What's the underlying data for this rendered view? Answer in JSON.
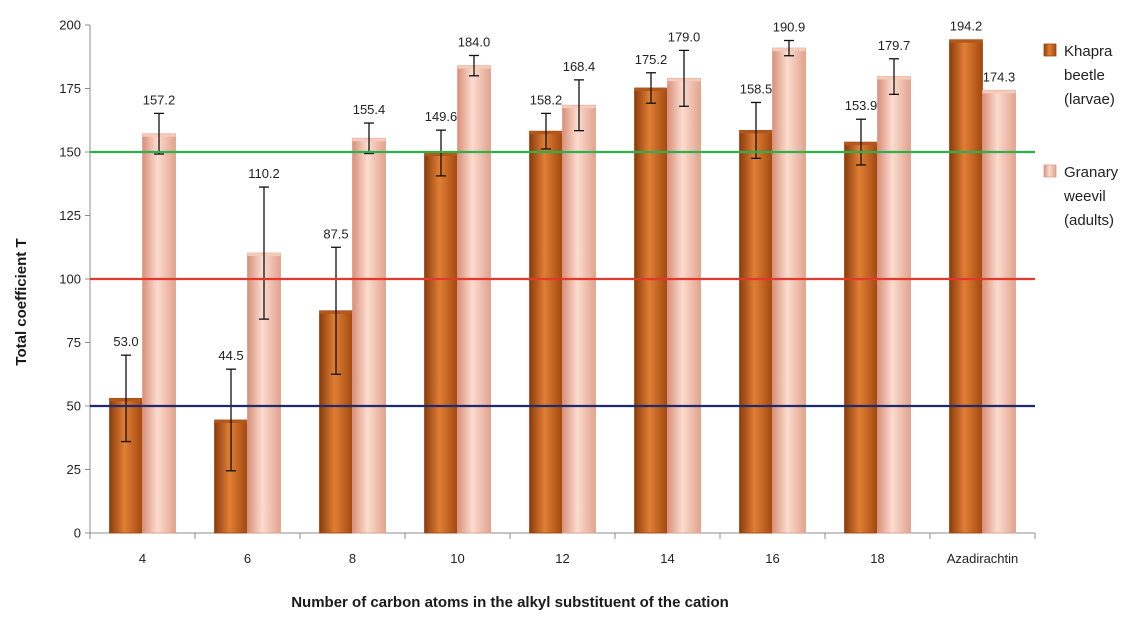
{
  "chart_data": {
    "type": "bar",
    "title": "",
    "xlabel": "Number of carbon atoms in the alkyl substituent of the cation",
    "ylabel": "Total coefficient T",
    "ylim": [
      0,
      200
    ],
    "yticks": [
      "0",
      "25",
      "50",
      "75",
      "100",
      "125",
      "150",
      "175",
      "200"
    ],
    "categories": [
      "4",
      "6",
      "8",
      "10",
      "12",
      "14",
      "16",
      "18",
      "Azadirachtin"
    ],
    "grid": false,
    "legend_position": "right",
    "series": [
      {
        "name": "Khapra beetle (larvae)",
        "legend_lines": [
          "Khapra",
          "beetle",
          "(larvae)"
        ],
        "color": "#c8621a",
        "values": [
          53.0,
          44.5,
          87.5,
          149.6,
          158.2,
          175.2,
          158.5,
          153.9,
          194.2
        ],
        "labels": [
          "53.0",
          "44.5",
          "87.5",
          "149.6",
          "158.2",
          "175.2",
          "158.5",
          "153.9",
          "194.2"
        ],
        "errors": [
          17,
          20,
          25,
          9,
          7,
          6,
          11,
          9,
          null
        ]
      },
      {
        "name": "Granary weevil (adults)",
        "legend_lines": [
          "Granary",
          "weevil",
          "(adults)"
        ],
        "color": "#f0b9a2",
        "values": [
          157.2,
          110.2,
          155.4,
          184.0,
          168.4,
          179.0,
          190.9,
          179.7,
          174.3
        ],
        "labels": [
          "157.2",
          "110.2",
          "155.4",
          "184.0",
          "168.4",
          "179.0",
          "190.9",
          "179.7",
          "174.3"
        ],
        "errors": [
          8,
          26,
          6,
          4,
          10,
          11,
          3,
          7,
          null
        ]
      }
    ],
    "reference_lines": [
      {
        "value": 150,
        "color": "#2fb04a"
      },
      {
        "value": 100,
        "color": "#e03a2e"
      },
      {
        "value": 50,
        "color": "#1f2a6b"
      }
    ]
  }
}
